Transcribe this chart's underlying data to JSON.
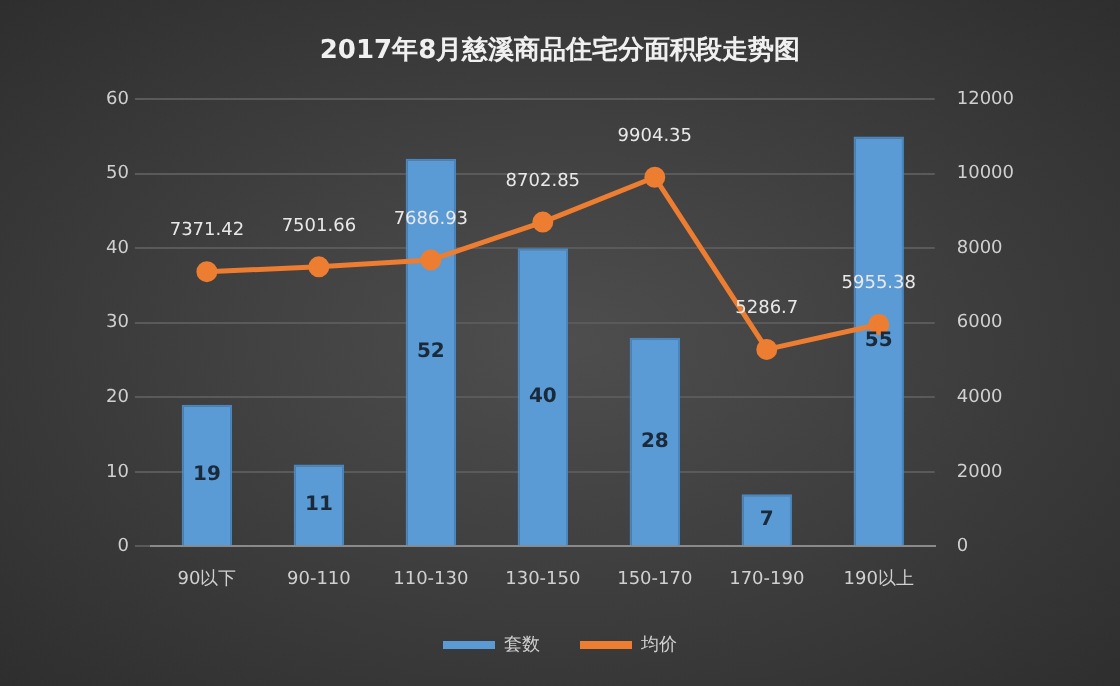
{
  "chart_data": {
    "type": "bar",
    "title": "2017年8月慈溪商品住宅分面积段走势图",
    "categories": [
      "90以下",
      "90-110",
      "110-130",
      "130-150",
      "150-170",
      "170-190",
      "190以上"
    ],
    "series": [
      {
        "name": "套数",
        "color": "#5b9bd5",
        "values": [
          19,
          11,
          52,
          40,
          28,
          7,
          55
        ]
      },
      {
        "name": "均价",
        "type": "line",
        "axis": "y2",
        "color": "#ed7d31",
        "marker": "circle",
        "values": [
          7371.42,
          7501.66,
          7686.93,
          8702.85,
          9904.35,
          5286.7,
          5955.38
        ]
      }
    ],
    "ylim": [
      0,
      60
    ],
    "yticks": [
      0,
      10,
      20,
      30,
      40,
      50,
      60
    ],
    "y2lim": [
      0,
      12000
    ],
    "y2ticks": [
      0,
      2000,
      4000,
      6000,
      8000,
      10000,
      12000
    ],
    "grid": "y",
    "legend": "bottom",
    "data_labels": true
  }
}
